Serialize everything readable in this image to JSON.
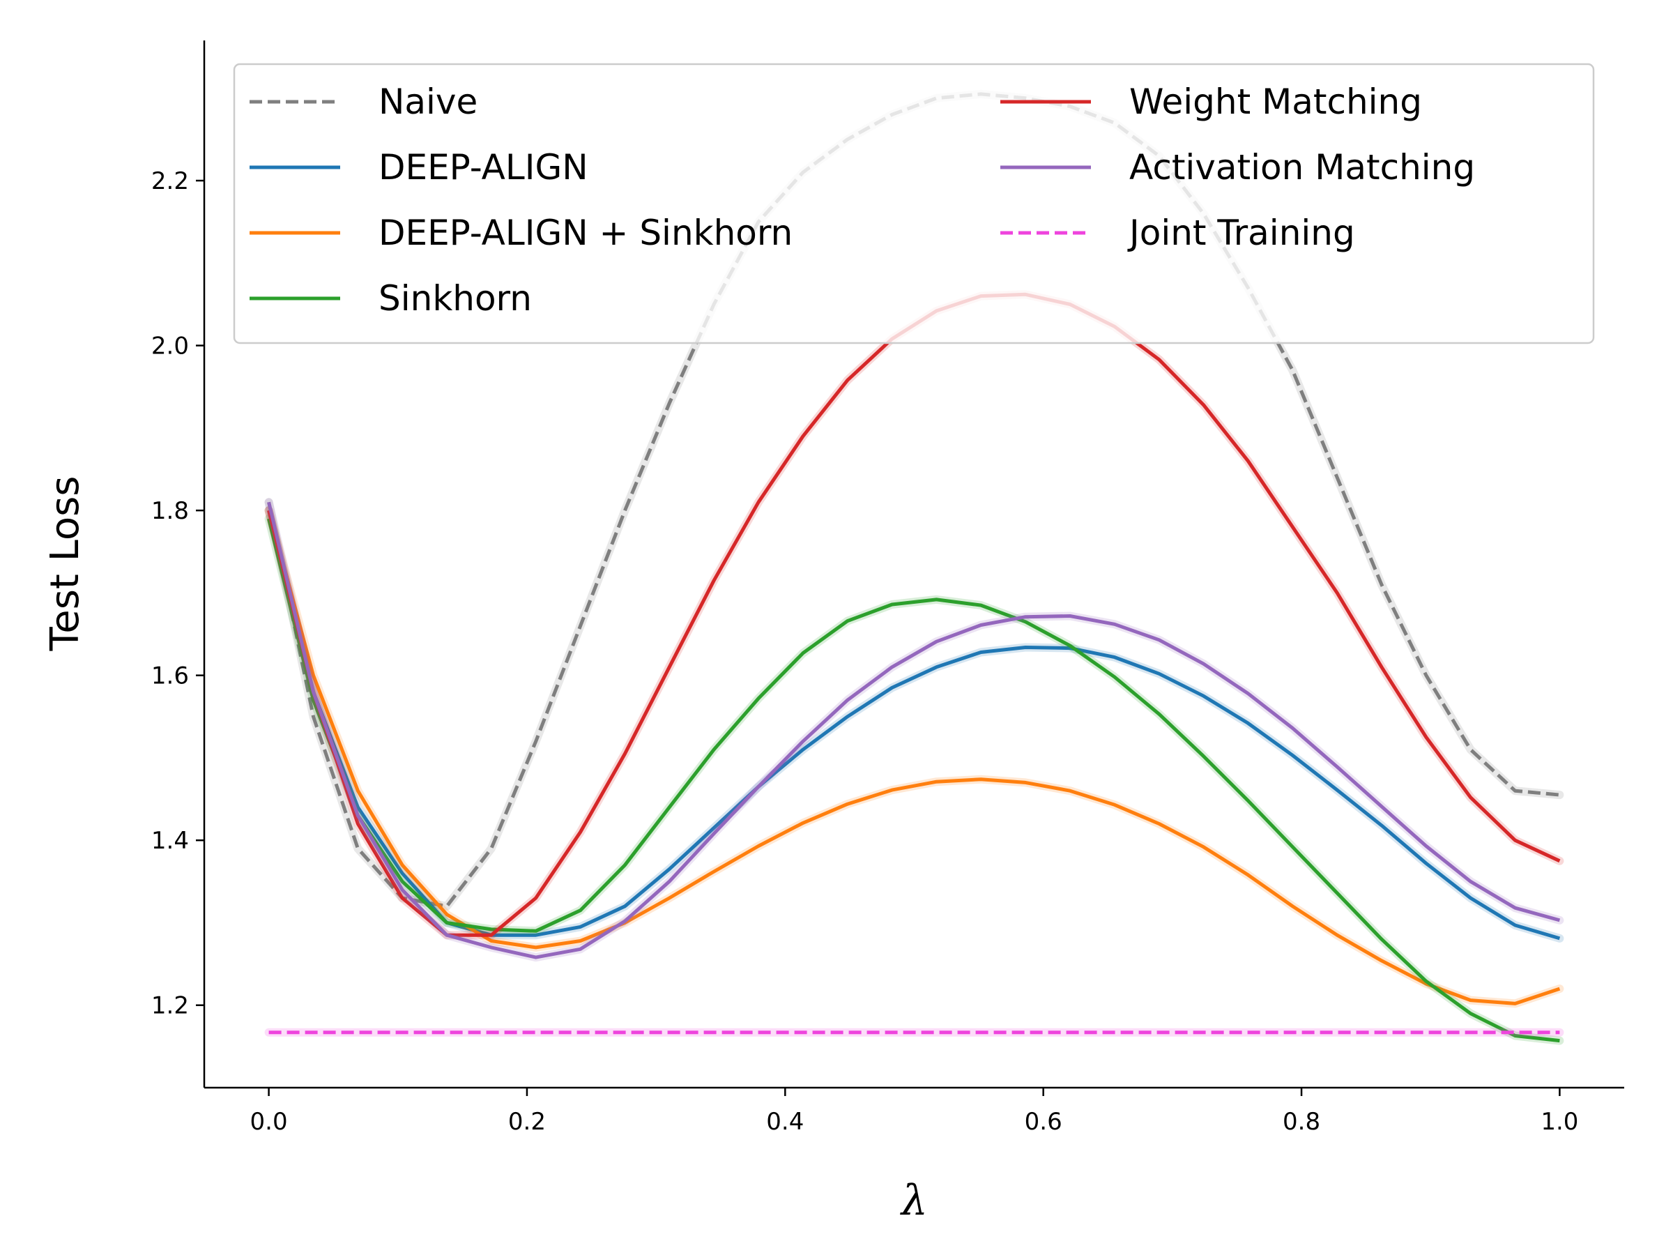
{
  "chart_data": {
    "type": "line",
    "title": "",
    "xlabel": "λ",
    "ylabel": "Test Loss",
    "xlim": [
      -0.05,
      1.05
    ],
    "ylim": [
      1.1,
      2.37
    ],
    "xticks": [
      "0.0",
      "0.2",
      "0.4",
      "0.6",
      "0.8",
      "1.0"
    ],
    "yticks": [
      "1.2",
      "1.4",
      "1.6",
      "1.8",
      "2.0",
      "2.2"
    ],
    "grid": false,
    "legend_position": "top",
    "x": [
      0.0,
      0.0345,
      0.069,
      0.1034,
      0.1379,
      0.1724,
      0.2069,
      0.2414,
      0.2759,
      0.3103,
      0.3448,
      0.3793,
      0.4138,
      0.4483,
      0.4828,
      0.5172,
      0.5517,
      0.5862,
      0.6207,
      0.6552,
      0.6897,
      0.7241,
      0.7586,
      0.7931,
      0.8276,
      0.8621,
      0.8966,
      0.931,
      0.9655,
      1.0
    ],
    "series": [
      {
        "name": "Naive",
        "color": "#7f7f7f",
        "dashed": true,
        "values": [
          1.81,
          1.55,
          1.39,
          1.33,
          1.32,
          1.39,
          1.52,
          1.66,
          1.8,
          1.93,
          2.05,
          2.15,
          2.21,
          2.25,
          2.28,
          2.3,
          2.305,
          2.3,
          2.29,
          2.27,
          2.23,
          2.16,
          2.07,
          1.97,
          1.84,
          1.71,
          1.6,
          1.51,
          1.46,
          1.455
        ]
      },
      {
        "name": "DEEP-ALIGN",
        "color": "#1f77b4",
        "dashed": false,
        "values": [
          1.8,
          1.58,
          1.44,
          1.36,
          1.3,
          1.285,
          1.285,
          1.295,
          1.32,
          1.365,
          1.415,
          1.465,
          1.51,
          1.55,
          1.585,
          1.61,
          1.628,
          1.634,
          1.633,
          1.622,
          1.602,
          1.575,
          1.542,
          1.503,
          1.461,
          1.418,
          1.372,
          1.33,
          1.297,
          1.281
        ]
      },
      {
        "name": "DEEP-ALIGN + Sinkhorn",
        "color": "#ff7f0e",
        "dashed": false,
        "values": [
          1.8,
          1.6,
          1.46,
          1.37,
          1.31,
          1.278,
          1.27,
          1.278,
          1.3,
          1.33,
          1.362,
          1.393,
          1.421,
          1.444,
          1.461,
          1.471,
          1.474,
          1.47,
          1.46,
          1.443,
          1.42,
          1.392,
          1.358,
          1.32,
          1.285,
          1.254,
          1.226,
          1.206,
          1.202,
          1.22
        ]
      },
      {
        "name": "Sinkhorn",
        "color": "#2ca02c",
        "dashed": false,
        "values": [
          1.79,
          1.57,
          1.43,
          1.35,
          1.3,
          1.292,
          1.29,
          1.315,
          1.37,
          1.44,
          1.51,
          1.572,
          1.627,
          1.666,
          1.686,
          1.692,
          1.685,
          1.665,
          1.636,
          1.598,
          1.553,
          1.502,
          1.448,
          1.392,
          1.336,
          1.28,
          1.229,
          1.19,
          1.163,
          1.157
        ]
      },
      {
        "name": "Weight Matching",
        "color": "#d62728",
        "dashed": false,
        "values": [
          1.8,
          1.58,
          1.42,
          1.33,
          1.285,
          1.285,
          1.33,
          1.41,
          1.505,
          1.61,
          1.715,
          1.81,
          1.89,
          1.958,
          2.008,
          2.042,
          2.06,
          2.062,
          2.05,
          2.023,
          1.983,
          1.928,
          1.86,
          1.78,
          1.7,
          1.61,
          1.525,
          1.452,
          1.4,
          1.375
        ]
      },
      {
        "name": "Activation Matching",
        "color": "#9467bd",
        "dashed": false,
        "values": [
          1.81,
          1.58,
          1.43,
          1.34,
          1.285,
          1.27,
          1.258,
          1.268,
          1.302,
          1.35,
          1.408,
          1.465,
          1.52,
          1.57,
          1.61,
          1.641,
          1.661,
          1.671,
          1.672,
          1.662,
          1.643,
          1.614,
          1.578,
          1.536,
          1.489,
          1.441,
          1.393,
          1.35,
          1.318,
          1.303
        ]
      },
      {
        "name": "Joint Training",
        "color": "#ee44dd",
        "dashed": true,
        "values": [
          1.167,
          1.167,
          1.167,
          1.167,
          1.167,
          1.167,
          1.167,
          1.167,
          1.167,
          1.167,
          1.167,
          1.167,
          1.167,
          1.167,
          1.167,
          1.167,
          1.167,
          1.167,
          1.167,
          1.167,
          1.167,
          1.167,
          1.167,
          1.167,
          1.167,
          1.167,
          1.167,
          1.167,
          1.167,
          1.167
        ]
      }
    ]
  }
}
